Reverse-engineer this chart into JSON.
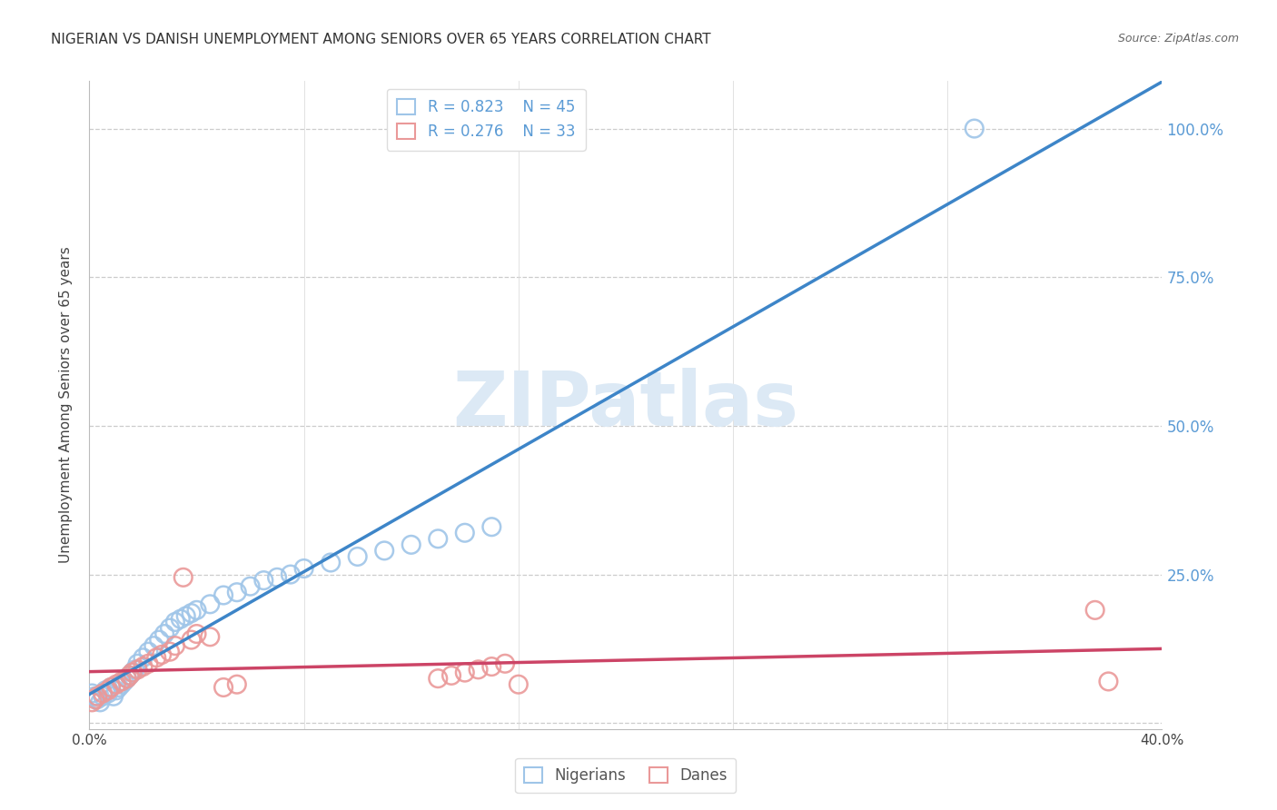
{
  "title": "NIGERIAN VS DANISH UNEMPLOYMENT AMONG SENIORS OVER 65 YEARS CORRELATION CHART",
  "source": "Source: ZipAtlas.com",
  "ylabel": "Unemployment Among Seniors over 65 years",
  "xlim": [
    0.0,
    0.4
  ],
  "ylim": [
    -0.01,
    1.08
  ],
  "xtick_vals": [
    0.0,
    0.08,
    0.16,
    0.24,
    0.32,
    0.4
  ],
  "xtick_labels": [
    "0.0%",
    "",
    "",
    "",
    "",
    "40.0%"
  ],
  "ytick_vals": [
    0.0,
    0.25,
    0.5,
    0.75,
    1.0
  ],
  "right_ytick_labels": [
    "100.0%",
    "75.0%",
    "50.0%",
    "25.0%"
  ],
  "blue_scatter_color": "#9fc5e8",
  "pink_scatter_color": "#ea9999",
  "blue_line_color": "#3d85c8",
  "pink_line_color": "#cc4466",
  "legend_text_color": "#5b9bd5",
  "right_axis_color": "#5b9bd5",
  "watermark_text": "ZIPatlas",
  "watermark_color": "#dce9f5",
  "legend_blue_r": "R = 0.823",
  "legend_blue_n": "N = 45",
  "legend_pink_r": "R = 0.276",
  "legend_pink_n": "N = 33",
  "nig_x": [
    0.001,
    0.002,
    0.003,
    0.004,
    0.005,
    0.006,
    0.007,
    0.008,
    0.009,
    0.01,
    0.011,
    0.012,
    0.013,
    0.014,
    0.015,
    0.016,
    0.017,
    0.018,
    0.02,
    0.022,
    0.024,
    0.026,
    0.028,
    0.03,
    0.032,
    0.034,
    0.036,
    0.038,
    0.04,
    0.045,
    0.05,
    0.055,
    0.06,
    0.065,
    0.07,
    0.075,
    0.08,
    0.09,
    0.1,
    0.11,
    0.12,
    0.13,
    0.14,
    0.15,
    0.33
  ],
  "nig_y": [
    0.05,
    0.045,
    0.04,
    0.035,
    0.045,
    0.055,
    0.05,
    0.06,
    0.045,
    0.055,
    0.06,
    0.065,
    0.07,
    0.075,
    0.08,
    0.085,
    0.09,
    0.1,
    0.11,
    0.12,
    0.13,
    0.14,
    0.15,
    0.16,
    0.17,
    0.175,
    0.18,
    0.185,
    0.19,
    0.2,
    0.215,
    0.22,
    0.23,
    0.24,
    0.245,
    0.25,
    0.26,
    0.27,
    0.28,
    0.29,
    0.3,
    0.31,
    0.32,
    0.33,
    1.0
  ],
  "dan_x": [
    0.001,
    0.002,
    0.003,
    0.005,
    0.007,
    0.008,
    0.01,
    0.012,
    0.014,
    0.015,
    0.016,
    0.018,
    0.02,
    0.022,
    0.025,
    0.027,
    0.03,
    0.032,
    0.035,
    0.038,
    0.04,
    0.045,
    0.05,
    0.055,
    0.13,
    0.135,
    0.14,
    0.145,
    0.15,
    0.155,
    0.16,
    0.375,
    0.38
  ],
  "dan_y": [
    0.035,
    0.04,
    0.045,
    0.05,
    0.055,
    0.06,
    0.065,
    0.07,
    0.075,
    0.08,
    0.085,
    0.09,
    0.095,
    0.1,
    0.11,
    0.115,
    0.12,
    0.13,
    0.245,
    0.14,
    0.15,
    0.145,
    0.06,
    0.065,
    0.075,
    0.08,
    0.085,
    0.09,
    0.095,
    0.1,
    0.065,
    0.19,
    0.07
  ]
}
